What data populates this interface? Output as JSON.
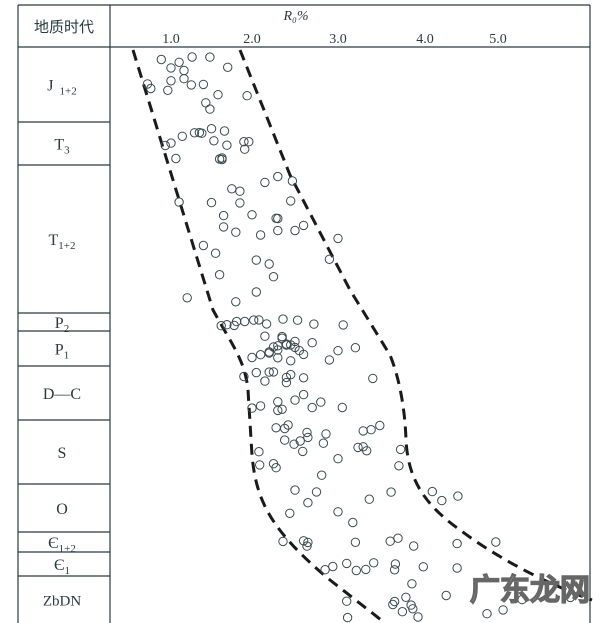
{
  "chart_data": {
    "type": "scatter",
    "title": "",
    "column_header": "地质时代",
    "xlabel": "R₀%",
    "x_ticks": [
      "1.0",
      "2.0",
      "3.0",
      "4.0",
      "5.0"
    ],
    "x_axis_position": "top",
    "grid": false,
    "marker": "open-circle",
    "envelope": "dashed-lines",
    "units": [
      {
        "label": "J",
        "sub": "1+2",
        "points": [
          0.71,
          0.75,
          0.88,
          1.0,
          1.0,
          1.25,
          1.48,
          1.48,
          0.96,
          1.16,
          1.16,
          1.43,
          1.58,
          1.26,
          1.4,
          1.7,
          1.94,
          1.1
        ]
      },
      {
        "label": "T",
        "sub": "3",
        "points": [
          0.93,
          1.0,
          1.29,
          1.5,
          1.63,
          1.6,
          1.66,
          1.9,
          1.06,
          1.38,
          1.53,
          1.69,
          1.91,
          1.14,
          1.35,
          1.63,
          1.96
        ]
      },
      {
        "label": "T",
        "sub": "1+2",
        "points": [
          1.1,
          1.4,
          1.65,
          1.85,
          2.25,
          2.3,
          2.28,
          2.47,
          1.2,
          1.85,
          2.05,
          2.1,
          1.5,
          1.55,
          2.6,
          1.6,
          2.05,
          1.75,
          2.45,
          1.8,
          2.15,
          2.3,
          1.65,
          2.2,
          2.9,
          1.8,
          2.0,
          2.5,
          3.0,
          2.3
        ]
      },
      {
        "label": "P",
        "sub": "2",
        "points": [
          1.69,
          1.81,
          1.91,
          2.02,
          2.08,
          2.17,
          2.36,
          2.53,
          2.72,
          3.06,
          1.62,
          1.78
        ]
      },
      {
        "label": "P",
        "sub": "1",
        "points": [
          2.0,
          2.1,
          2.2,
          2.3,
          2.35,
          2.4,
          2.45,
          2.5,
          2.3,
          2.2,
          2.6,
          2.7,
          2.9,
          2.15,
          2.4,
          2.55,
          2.25,
          2.35,
          2.45,
          2.5,
          2.3,
          3.0,
          3.2
        ]
      },
      {
        "label": "D—C",
        "sub": "",
        "points": [
          1.9,
          2.1,
          2.3,
          2.4,
          2.2,
          2.6,
          2.8,
          2.3,
          2.5,
          2.35,
          2.15,
          3.05,
          3.4,
          2.05,
          2.45,
          2.25,
          2.6,
          2.7,
          2.0,
          2.4
        ]
      },
      {
        "label": "S",
        "sub": "",
        "points": [
          2.08,
          2.28,
          2.38,
          2.59,
          2.38,
          2.49,
          2.65,
          2.56,
          2.28,
          2.64,
          2.86,
          2.42,
          3.0,
          3.38,
          3.29,
          3.29,
          3.33,
          3.23,
          3.48,
          3.7,
          3.72,
          2.09,
          2.83,
          2.81,
          2.25
        ]
      },
      {
        "label": "O",
        "sub": "",
        "points": [
          2.44,
          3.36,
          2.65,
          2.75,
          3.17,
          3.61,
          4.1,
          4.45,
          4.23,
          2.5,
          3.0
        ]
      },
      {
        "label": "Є",
        "sub": "1+2",
        "points": [
          2.36,
          2.6,
          2.65,
          2.64,
          3.2,
          3.6,
          3.69,
          3.87,
          4.44,
          4.97
        ]
      },
      {
        "label": "Є",
        "sub": "1",
        "points": [
          2.85,
          2.94,
          3.1,
          3.21,
          3.32,
          3.41,
          3.66,
          3.98,
          4.44,
          3.65
        ]
      },
      {
        "label": "ZbDN",
        "sub": "",
        "points": [
          3.1,
          3.11,
          3.63,
          3.74,
          3.78,
          3.85,
          3.92,
          3.65,
          3.84,
          4.29,
          3.86,
          5.07,
          5.33,
          5.99,
          4.85
        ]
      }
    ]
  },
  "watermark": "广东龙网",
  "colors": {
    "line": "#2b3a3e",
    "marker": "#3a4a4e",
    "envelope": "#1a1a1a"
  }
}
